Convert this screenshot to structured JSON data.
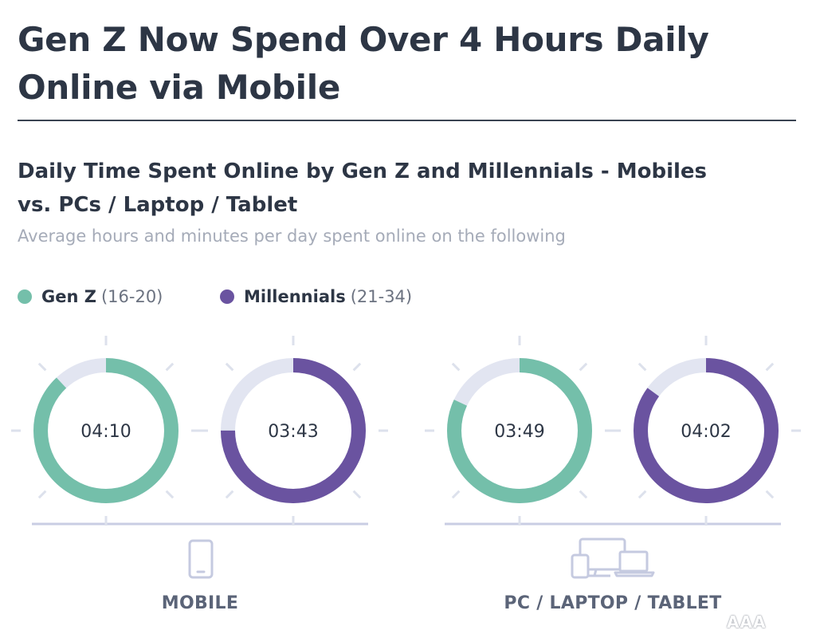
{
  "headline": "Gen Z Now Spend Over 4 Hours Daily Online via Mobile",
  "colors": {
    "gen_z": "#74bfaa",
    "millennials": "#6a53a0",
    "track": "#e2e5f1",
    "tick": "#dde1ec",
    "text": "#2d3645",
    "muted": "#a5abb8"
  },
  "watermark": "AAA",
  "chart_data": {
    "type": "donut",
    "title": "Daily Time Spent Online by Gen Z and Millennials - Mobiles vs. PCs / Laptop / Tablet",
    "subtitle": "Average hours and minutes per day spent online on the following",
    "legend": [
      {
        "name": "Gen Z",
        "range": "(16-20)",
        "color": "#74bfaa"
      },
      {
        "name": "Millennials",
        "range": "(21-34)",
        "color": "#6a53a0"
      }
    ],
    "groups": [
      {
        "label": "MOBILE",
        "icon": "smartphone-icon",
        "values": [
          {
            "series": "Gen Z",
            "label": "04:10",
            "fraction": 0.88
          },
          {
            "series": "Millennials",
            "label": "03:43",
            "fraction": 0.75
          }
        ]
      },
      {
        "label": "PC / LAPTOP / TABLET",
        "icon": "devices-icon",
        "values": [
          {
            "series": "Gen Z",
            "label": "03:49",
            "fraction": 0.82
          },
          {
            "series": "Millennials",
            "label": "04:02",
            "fraction": 0.85
          }
        ]
      }
    ]
  }
}
